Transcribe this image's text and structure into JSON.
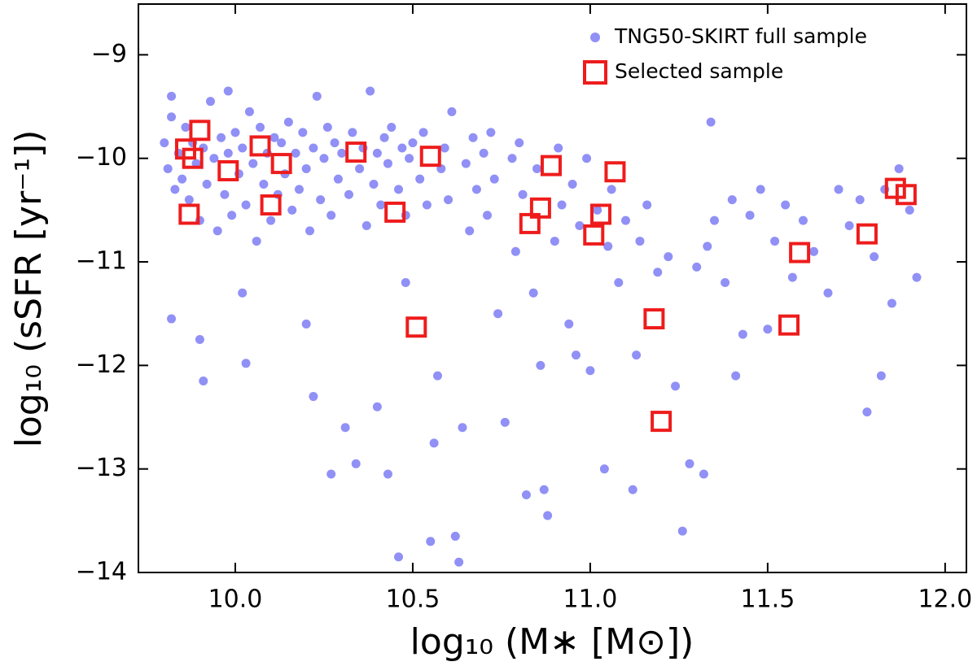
{
  "chart_data": {
    "type": "scatter",
    "xlabel": "log₁₀ (M∗ [M⊙])",
    "ylabel": "log₁₀ (sSFR [yr⁻¹])",
    "xlim": [
      9.727,
      12.06
    ],
    "ylim": [
      -14,
      -8.51
    ],
    "xticks": [
      {
        "value": 10,
        "label": "10.0"
      },
      10.5,
      {
        "value": 11,
        "label": "11.0"
      },
      11.5,
      {
        "value": 12,
        "label": "12.0"
      }
    ],
    "yticks": [
      {
        "value": -9,
        "label": "−9"
      },
      {
        "value": -10,
        "label": "−10"
      },
      {
        "value": -11,
        "label": "−11"
      },
      {
        "value": -12,
        "label": "−12"
      },
      {
        "value": -13,
        "label": "−13"
      },
      {
        "value": -14,
        "label": "−14"
      }
    ],
    "legend": "upper right",
    "series": [
      {
        "name": "TNG50-SKIRT full sample",
        "color": "#7474f4",
        "marker": "circle",
        "x": [
          9.8,
          9.81,
          9.82,
          9.83,
          9.84,
          9.85,
          9.82,
          9.86,
          9.87,
          9.88,
          9.89,
          9.9,
          9.91,
          9.92,
          9.93,
          9.94,
          9.95,
          9.96,
          9.97,
          9.98,
          9.9,
          9.91,
          9.99,
          10.0,
          10.01,
          10.02,
          10.03,
          10.04,
          10.05,
          10.06,
          10.07,
          10.08,
          10.09,
          10.1,
          10.11,
          10.12,
          10.13,
          10.14,
          10.02,
          10.03,
          10.15,
          10.16,
          10.17,
          10.18,
          10.19,
          10.2,
          10.21,
          10.22,
          10.23,
          10.24,
          10.25,
          10.26,
          10.27,
          10.28,
          10.29,
          10.3,
          10.2,
          10.22,
          10.27,
          10.31,
          10.32,
          10.33,
          10.35,
          10.36,
          10.37,
          10.38,
          10.39,
          10.4,
          10.41,
          10.42,
          10.43,
          10.44,
          10.46,
          10.47,
          10.48,
          10.49,
          10.5,
          10.52,
          10.53,
          10.54,
          10.4,
          10.43,
          10.46,
          10.34,
          10.48,
          10.55,
          10.56,
          10.57,
          10.58,
          10.59,
          10.6,
          10.61,
          10.62,
          10.63,
          10.64,
          10.65,
          10.66,
          10.67,
          10.68,
          10.7,
          10.71,
          10.72,
          10.73,
          10.74,
          10.76,
          10.78,
          10.79,
          10.8,
          10.81,
          10.82,
          10.84,
          10.85,
          10.86,
          10.87,
          10.88,
          10.9,
          10.91,
          10.92,
          10.94,
          10.95,
          10.96,
          10.97,
          10.99,
          11.0,
          11.02,
          11.04,
          11.05,
          11.06,
          11.08,
          11.1,
          11.12,
          11.13,
          11.14,
          11.16,
          11.19,
          11.22,
          11.24,
          11.26,
          11.28,
          11.3,
          11.32,
          11.33,
          11.35,
          11.38,
          11.4,
          11.41,
          11.43,
          11.45,
          11.48,
          11.5,
          11.52,
          11.55,
          11.57,
          11.6,
          11.63,
          11.67,
          11.7,
          11.73,
          11.76,
          11.78,
          11.8,
          11.83,
          11.85,
          11.87,
          11.9,
          11.92,
          11.82,
          11.34,
          9.82,
          9.98
        ],
        "values": [
          -9.85,
          -10.1,
          -9.6,
          -10.3,
          -9.95,
          -10.2,
          -11.55,
          -9.7,
          -10.4,
          -9.85,
          -10.05,
          -10.6,
          -9.9,
          -10.25,
          -9.45,
          -10.0,
          -10.7,
          -9.8,
          -10.35,
          -9.95,
          -11.75,
          -12.15,
          -10.55,
          -9.75,
          -10.15,
          -9.9,
          -10.45,
          -9.55,
          -10.05,
          -10.8,
          -9.7,
          -10.25,
          -9.95,
          -10.6,
          -9.8,
          -10.35,
          -9.85,
          -10.15,
          -11.3,
          -11.98,
          -9.65,
          -10.5,
          -9.95,
          -10.3,
          -9.75,
          -10.1,
          -10.7,
          -9.9,
          -9.4,
          -10.4,
          -10.0,
          -9.7,
          -10.55,
          -9.85,
          -10.2,
          -9.95,
          -11.6,
          -12.3,
          -13.05,
          -12.6,
          -10.35,
          -9.75,
          -10.1,
          -9.9,
          -10.65,
          -9.35,
          -10.25,
          -9.95,
          -10.45,
          -9.8,
          -10.05,
          -9.7,
          -10.3,
          -9.9,
          -10.55,
          -10.0,
          -9.85,
          -10.2,
          -9.75,
          -10.45,
          -12.4,
          -13.05,
          -13.85,
          -12.95,
          -11.2,
          -13.7,
          -12.75,
          -12.1,
          -10.1,
          -9.9,
          -10.4,
          -9.55,
          -13.65,
          -13.9,
          -12.6,
          -10.05,
          -10.7,
          -9.8,
          -10.3,
          -9.95,
          -10.55,
          -9.75,
          -10.2,
          -11.5,
          -12.55,
          -10.0,
          -10.9,
          -9.85,
          -10.35,
          -13.25,
          -11.3,
          -10.1,
          -12.0,
          -13.2,
          -13.45,
          -10.8,
          -9.9,
          -10.45,
          -11.6,
          -10.25,
          -11.9,
          -10.65,
          -10.0,
          -12.05,
          -10.5,
          -13.0,
          -10.85,
          -10.3,
          -11.2,
          -10.6,
          -13.2,
          -11.9,
          -10.8,
          -10.45,
          -11.1,
          -10.95,
          -12.2,
          -13.6,
          -12.95,
          -11.05,
          -13.05,
          -10.85,
          -10.6,
          -11.2,
          -10.4,
          -12.1,
          -11.7,
          -10.55,
          -10.3,
          -11.65,
          -10.8,
          -10.45,
          -11.15,
          -10.6,
          -10.9,
          -11.3,
          -10.3,
          -10.65,
          -10.4,
          -12.45,
          -10.95,
          -10.3,
          -11.4,
          -10.1,
          -10.5,
          -11.15,
          -12.1,
          -9.65,
          -9.4,
          -9.35
        ]
      },
      {
        "name": "Selected sample",
        "color": "#ee1c1c",
        "marker": "square",
        "x": [
          9.86,
          9.88,
          9.9,
          9.87,
          9.98,
          10.07,
          10.1,
          10.13,
          10.34,
          10.45,
          10.55,
          10.51,
          10.83,
          10.86,
          10.89,
          11.01,
          11.03,
          11.07,
          11.18,
          11.2,
          11.56,
          11.59,
          11.78,
          11.86,
          11.89
        ],
        "values": [
          -9.91,
          -10.0,
          -9.73,
          -10.54,
          -10.12,
          -9.88,
          -10.45,
          -10.05,
          -9.94,
          -10.52,
          -9.98,
          -11.63,
          -10.63,
          -10.48,
          -10.07,
          -10.74,
          -10.54,
          -10.13,
          -11.55,
          -12.54,
          -11.61,
          -10.91,
          -10.73,
          -10.29,
          -10.35
        ]
      }
    ]
  }
}
